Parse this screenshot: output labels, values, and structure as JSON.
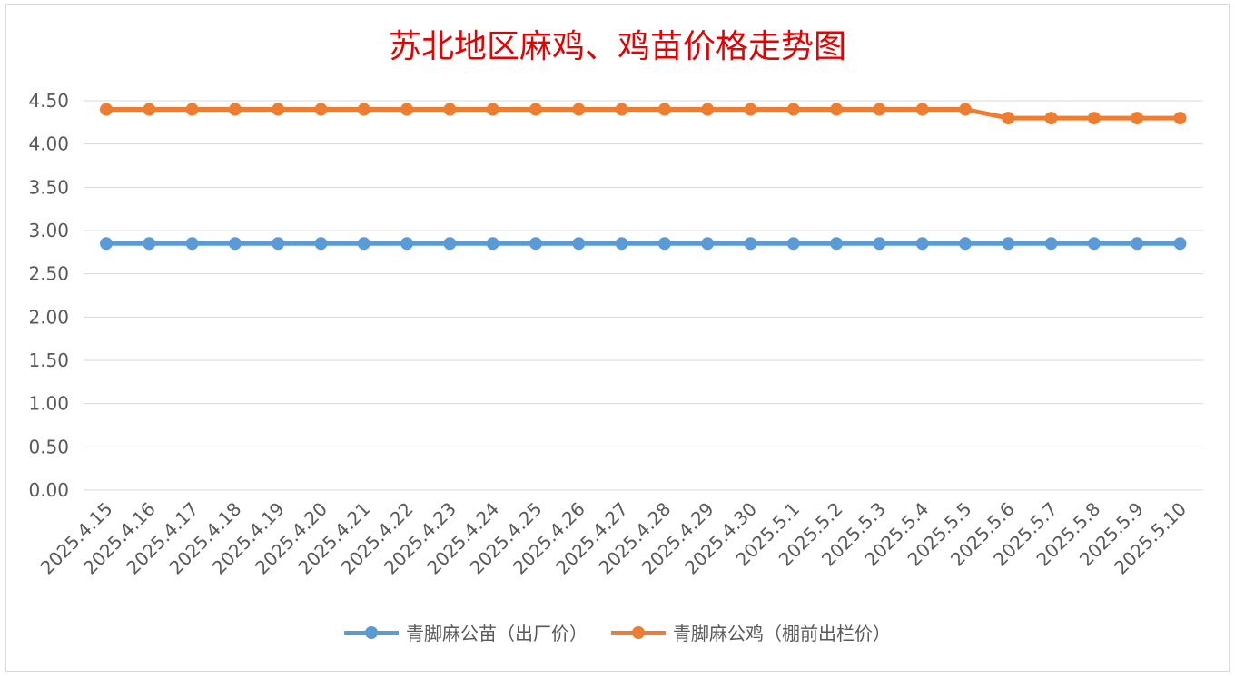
{
  "chart_data": {
    "type": "line",
    "title": "苏北地区麻鸡、鸡苗价格走势图",
    "xlabel": "",
    "ylabel": "",
    "ylim": [
      0,
      4.5
    ],
    "yticks": [
      "0.00",
      "0.50",
      "1.00",
      "1.50",
      "2.00",
      "2.50",
      "3.00",
      "3.50",
      "4.00",
      "4.50"
    ],
    "grid": true,
    "legend_position": "bottom",
    "categories": [
      "2025.4.15",
      "2025.4.16",
      "2025.4.17",
      "2025.4.18",
      "2025.4.19",
      "2025.4.20",
      "2025.4.21",
      "2025.4.22",
      "2025.4.23",
      "2025.4.24",
      "2025.4.25",
      "2025.4.26",
      "2025.4.27",
      "2025.4.28",
      "2025.4.29",
      "2025.4.30",
      "2025.5.1",
      "2025.5.2",
      "2025.5.3",
      "2025.5.4",
      "2025.5.5",
      "2025.5.6",
      "2025.5.7",
      "2025.5.8",
      "2025.5.9",
      "2025.5.10"
    ],
    "series": [
      {
        "name": "青脚麻公苗（出厂价）",
        "color": "#5b9bd5",
        "values": [
          2.85,
          2.85,
          2.85,
          2.85,
          2.85,
          2.85,
          2.85,
          2.85,
          2.85,
          2.85,
          2.85,
          2.85,
          2.85,
          2.85,
          2.85,
          2.85,
          2.85,
          2.85,
          2.85,
          2.85,
          2.85,
          2.85,
          2.85,
          2.85,
          2.85,
          2.85
        ]
      },
      {
        "name": "青脚麻公鸡（棚前出栏价）",
        "color": "#ed7d31",
        "values": [
          4.4,
          4.4,
          4.4,
          4.4,
          4.4,
          4.4,
          4.4,
          4.4,
          4.4,
          4.4,
          4.4,
          4.4,
          4.4,
          4.4,
          4.4,
          4.4,
          4.4,
          4.4,
          4.4,
          4.4,
          4.4,
          4.3,
          4.3,
          4.3,
          4.3,
          4.3
        ]
      }
    ]
  }
}
